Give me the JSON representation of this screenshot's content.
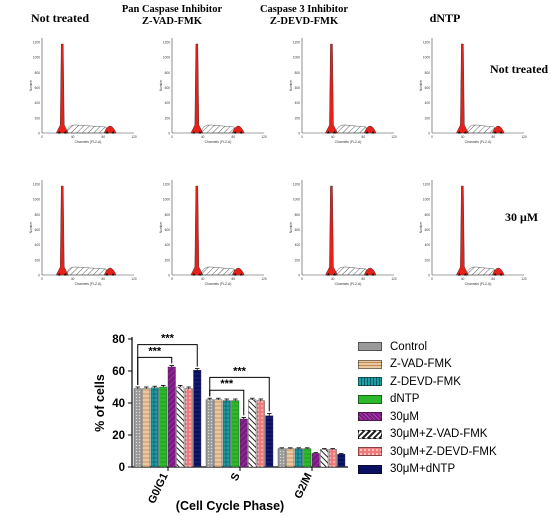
{
  "column_headers": [
    {
      "line1": "Not treated",
      "line2": ""
    },
    {
      "line1": "Pan Caspase Inhibitor",
      "line2": "Z-VAD-FMK"
    },
    {
      "line1": "Caspase 3 Inhibitor",
      "line2": "Z-DEVD-FMK"
    },
    {
      "line1": "dNTP",
      "line2": ""
    }
  ],
  "row_labels": [
    "Not treated",
    "30 μM"
  ],
  "histogram_axis": {
    "ylabel": "Number",
    "xlabel": "Channels (FL2-A)",
    "y_ticks": [
      "1200",
      "1000",
      "800",
      "600",
      "400",
      "200",
      "0"
    ],
    "x_ticks": [
      "0",
      "40",
      "80",
      "120"
    ]
  },
  "colors": {
    "control": "#9a9a9a",
    "zvad": "#e8c9a2",
    "zdevd": "#1e9e9e",
    "dntp": "#2db82d",
    "um30": "#7a1a82",
    "um30_zvad": "#222222",
    "um30_zdevd": "#f07a7a",
    "um30_dntp": "#0a1060",
    "histogram_fill": "#e8201a",
    "histogram_hatch": "#333333"
  },
  "chart_data": {
    "type": "bar",
    "categories": [
      "G0/G1",
      "S",
      "G2/M"
    ],
    "xlabel": "(Cell Cycle Phase)",
    "ylabel": "% of cells",
    "ylim": [
      0,
      80
    ],
    "yticks": [
      0,
      20,
      40,
      60,
      80
    ],
    "legend_position": "right",
    "significance_label": "***",
    "series": [
      {
        "name": "Control",
        "values": [
          49,
          42,
          11.5
        ],
        "errors": [
          1,
          1,
          0.5
        ]
      },
      {
        "name": "Z-VAD-FMK",
        "values": [
          49,
          42,
          11.5
        ],
        "errors": [
          1,
          1,
          0.5
        ]
      },
      {
        "name": "Z-DEVD-FMK",
        "values": [
          49.5,
          41.5,
          11.5
        ],
        "errors": [
          1,
          1,
          0.5
        ]
      },
      {
        "name": "dNTP",
        "values": [
          50,
          41.5,
          11.5
        ],
        "errors": [
          1,
          1,
          0.5
        ]
      },
      {
        "name": "30μM",
        "values": [
          62.5,
          30,
          8.5
        ],
        "errors": [
          1,
          1,
          0.5
        ]
      },
      {
        "name": "30μM+Z-VAD-FMK",
        "values": [
          50,
          42,
          11
        ],
        "errors": [
          1,
          1,
          0.5
        ]
      },
      {
        "name": "30μM+Z-DEVD-FMK",
        "values": [
          49,
          41.5,
          11
        ],
        "errors": [
          1,
          1,
          0.5
        ]
      },
      {
        "name": "30μM+dNTP",
        "values": [
          60.5,
          32,
          8
        ],
        "errors": [
          1,
          1.5,
          0.5
        ]
      }
    ],
    "significance": [
      {
        "category": "G0/G1",
        "from_series": 0,
        "to_series": 4,
        "label": "***"
      },
      {
        "category": "G0/G1",
        "from_series": 0,
        "to_series": 7,
        "label": "***"
      },
      {
        "category": "S",
        "from_series": 0,
        "to_series": 4,
        "label": "***"
      },
      {
        "category": "S",
        "from_series": 0,
        "to_series": 7,
        "label": "***"
      }
    ]
  }
}
